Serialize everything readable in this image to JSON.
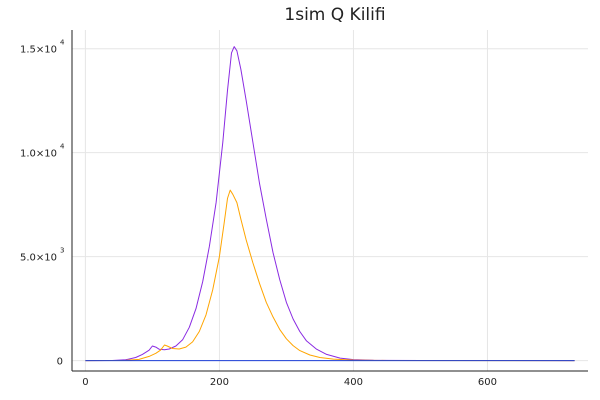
{
  "chart_data": {
    "type": "line",
    "title": "1sim Q Kilifi",
    "xlabel": "",
    "ylabel": "",
    "xlim": [
      -20,
      750
    ],
    "ylim": [
      -500,
      15900
    ],
    "grid": true,
    "legend": "none",
    "x_ticks": [
      {
        "value": 0,
        "label": "0"
      },
      {
        "value": 200,
        "label": "200"
      },
      {
        "value": 400,
        "label": "400"
      },
      {
        "value": 600,
        "label": "600"
      }
    ],
    "y_ticks": [
      {
        "value": 0,
        "mant": "0",
        "exp": ""
      },
      {
        "value": 5000,
        "mant": "5.0×10",
        "exp": "3"
      },
      {
        "value": 10000,
        "mant": "1.0×10",
        "exp": "4"
      },
      {
        "value": 15000,
        "mant": "1.5×10",
        "exp": "4"
      }
    ],
    "series": [
      {
        "color": "#8a2be2",
        "points": [
          [
            0,
            0
          ],
          [
            40,
            5
          ],
          [
            60,
            40
          ],
          [
            75,
            150
          ],
          [
            85,
            300
          ],
          [
            95,
            500
          ],
          [
            100,
            700
          ],
          [
            105,
            650
          ],
          [
            110,
            550
          ],
          [
            118,
            520
          ],
          [
            125,
            560
          ],
          [
            135,
            700
          ],
          [
            145,
            1000
          ],
          [
            155,
            1600
          ],
          [
            165,
            2500
          ],
          [
            175,
            3800
          ],
          [
            185,
            5500
          ],
          [
            195,
            7600
          ],
          [
            205,
            10500
          ],
          [
            212,
            13000
          ],
          [
            218,
            14800
          ],
          [
            222,
            15100
          ],
          [
            226,
            14900
          ],
          [
            232,
            14000
          ],
          [
            240,
            12500
          ],
          [
            250,
            10500
          ],
          [
            260,
            8500
          ],
          [
            270,
            6800
          ],
          [
            280,
            5200
          ],
          [
            290,
            3900
          ],
          [
            300,
            2800
          ],
          [
            310,
            2000
          ],
          [
            320,
            1400
          ],
          [
            330,
            950
          ],
          [
            345,
            550
          ],
          [
            360,
            300
          ],
          [
            380,
            120
          ],
          [
            400,
            50
          ],
          [
            430,
            15
          ],
          [
            500,
            5
          ],
          [
            730,
            0
          ]
        ]
      },
      {
        "color": "#ffa500",
        "points": [
          [
            0,
            0
          ],
          [
            60,
            10
          ],
          [
            80,
            60
          ],
          [
            95,
            200
          ],
          [
            105,
            350
          ],
          [
            112,
            500
          ],
          [
            118,
            750
          ],
          [
            122,
            700
          ],
          [
            130,
            580
          ],
          [
            140,
            560
          ],
          [
            150,
            650
          ],
          [
            160,
            900
          ],
          [
            170,
            1400
          ],
          [
            180,
            2200
          ],
          [
            190,
            3400
          ],
          [
            200,
            5000
          ],
          [
            207,
            6600
          ],
          [
            212,
            7800
          ],
          [
            216,
            8200
          ],
          [
            220,
            8000
          ],
          [
            226,
            7600
          ],
          [
            232,
            6800
          ],
          [
            240,
            5800
          ],
          [
            250,
            4700
          ],
          [
            260,
            3700
          ],
          [
            270,
            2800
          ],
          [
            280,
            2100
          ],
          [
            290,
            1500
          ],
          [
            300,
            1050
          ],
          [
            310,
            720
          ],
          [
            320,
            480
          ],
          [
            335,
            270
          ],
          [
            350,
            150
          ],
          [
            370,
            70
          ],
          [
            400,
            25
          ],
          [
            450,
            5
          ],
          [
            730,
            0
          ]
        ]
      },
      {
        "color": "#1c3fd8",
        "points": [
          [
            0,
            0
          ],
          [
            730,
            0
          ]
        ]
      }
    ]
  }
}
